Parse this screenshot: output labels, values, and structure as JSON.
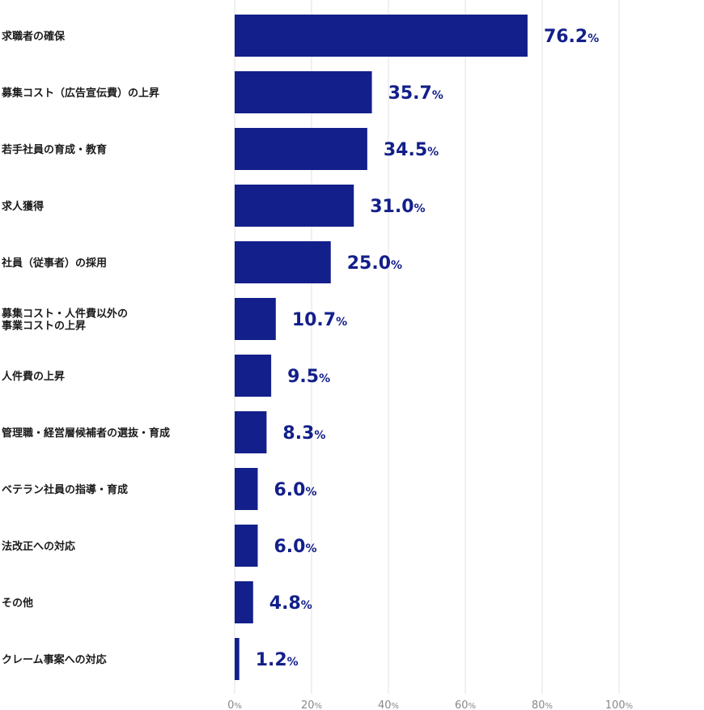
{
  "chart_data": {
    "type": "bar",
    "orientation": "horizontal",
    "categories": [
      [
        "求職者の確保"
      ],
      [
        "募集コスト（広告宣伝費）の上昇"
      ],
      [
        "若手社員の育成・教育"
      ],
      [
        "求人獲得"
      ],
      [
        "社員（従事者）の採用"
      ],
      [
        "募集コスト・人件費以外の",
        "事業コストの上昇"
      ],
      [
        "人件費の上昇"
      ],
      [
        "管理職・経営層候補者の選抜・育成"
      ],
      [
        "ベテラン社員の指導・育成"
      ],
      [
        "法改正への対応"
      ],
      [
        "その他"
      ],
      [
        "クレーム事案への対応"
      ]
    ],
    "values": [
      76.2,
      35.7,
      34.5,
      31.0,
      25.0,
      10.7,
      9.5,
      8.3,
      6.0,
      6.0,
      4.8,
      1.2
    ],
    "value_labels": [
      "76.2",
      "35.7",
      "34.5",
      "31.0",
      "25.0",
      "10.7",
      "9.5",
      "8.3",
      "6.0",
      "6.0",
      "4.8",
      "1.2"
    ],
    "value_unit": "%",
    "xlim": [
      0,
      100
    ],
    "x_ticks": [
      0,
      20,
      40,
      60,
      80,
      100
    ],
    "tick_unit": "%",
    "grid": true,
    "legend": "none",
    "bar_color": "#131f8a",
    "label_color": "#131f8a",
    "grid_color": "#e2e2e2",
    "tick_color": "#888888"
  }
}
